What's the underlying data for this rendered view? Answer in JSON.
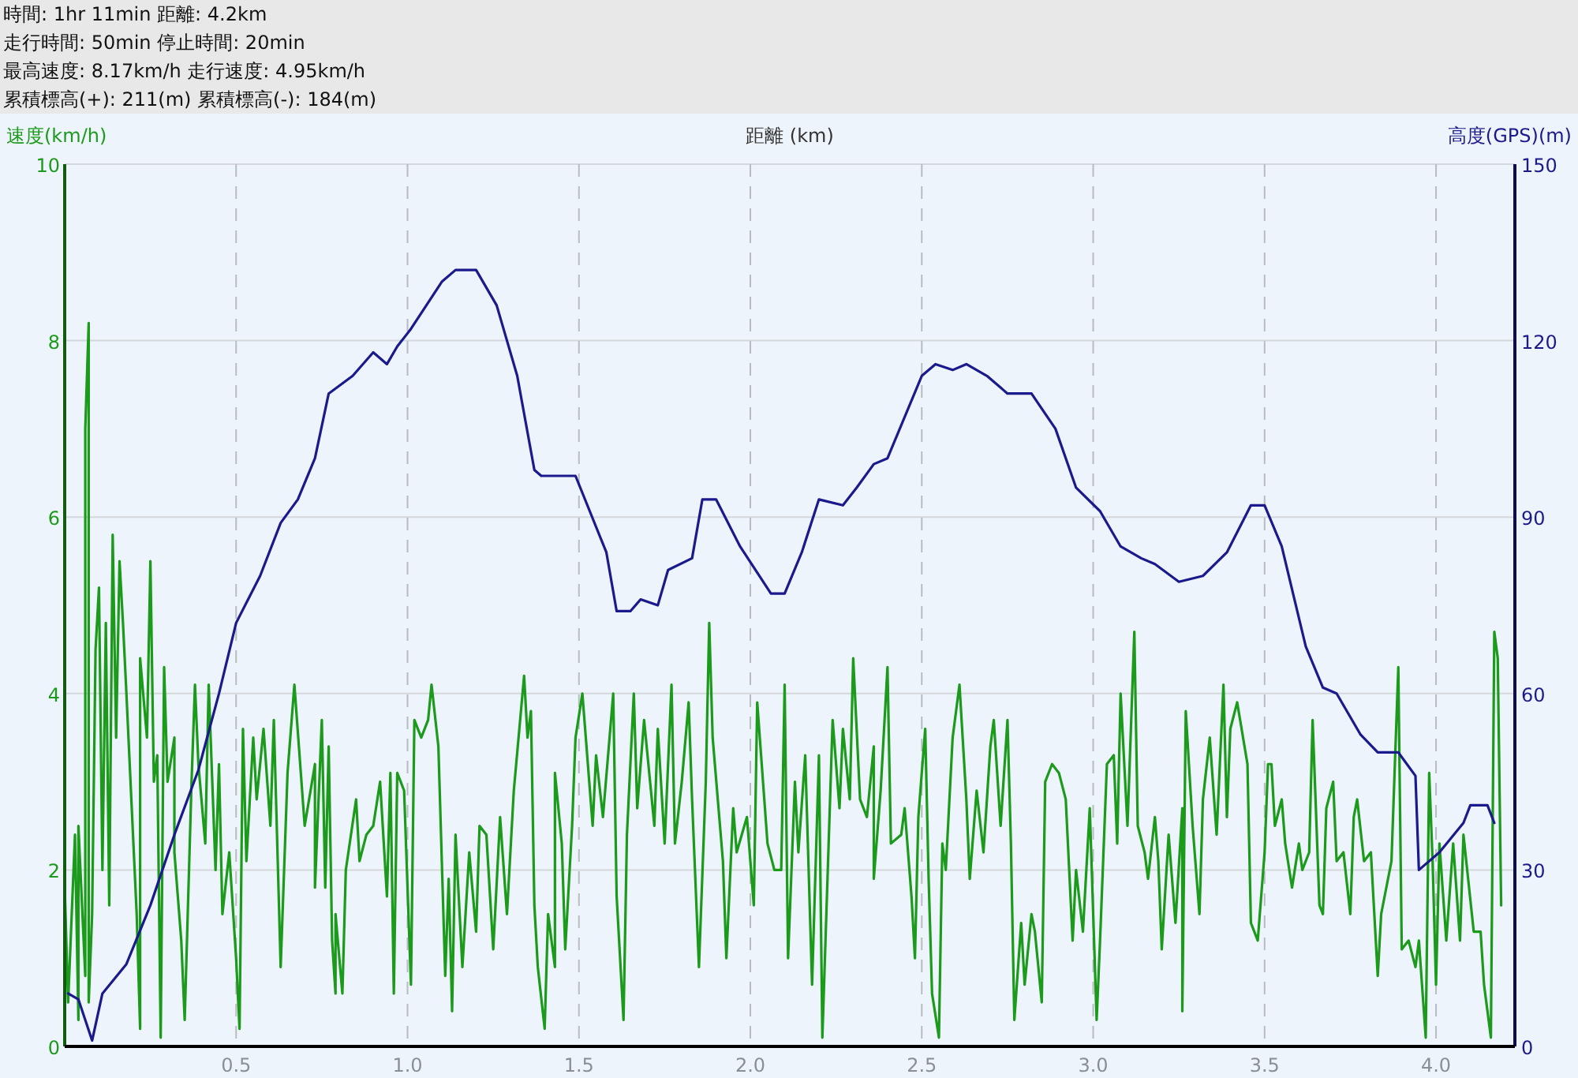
{
  "chart_data": {
    "type": "line",
    "annotations": [
      "時間: 1hr 11min 距離: 4.2km",
      "走行時間: 50min 停止時間: 20min",
      "最高速度: 8.17km/h 走行速度: 4.95km/h",
      "累積標高(+): 211(m) 累積標高(-): 184(m)"
    ],
    "xlabel": "距離 (km)",
    "ylabel": "速度(km/h)",
    "y2label": "高度(GPS)(m)",
    "xlim": [
      0,
      4.23
    ],
    "xticks": [
      {
        "value": 0.5,
        "label": "0.5"
      },
      {
        "value": 1,
        "label": "1.0"
      },
      {
        "value": 1.5,
        "label": "1.5"
      },
      {
        "value": 2,
        "label": "2.0"
      },
      {
        "value": 2.5,
        "label": "2.5"
      },
      {
        "value": 3,
        "label": "3.0"
      },
      {
        "value": 3.5,
        "label": "3.5"
      },
      {
        "value": 4,
        "label": "4.0"
      }
    ],
    "ylim": [
      0,
      10
    ],
    "yticks": [
      0,
      2,
      4,
      6,
      8,
      10
    ],
    "y2lim": [
      0,
      150
    ],
    "y2ticks": [
      0,
      30,
      60,
      90,
      120,
      150
    ],
    "grid": true,
    "series": [
      {
        "color": "#1c9a1c",
        "x": [
          0.0,
          0.01,
          0.03,
          0.04,
          0.04,
          0.06,
          0.06,
          0.07,
          0.07,
          0.08,
          0.09,
          0.1,
          0.11,
          0.12,
          0.13,
          0.14,
          0.15,
          0.16,
          0.17,
          0.18,
          0.21,
          0.22,
          0.22,
          0.24,
          0.25,
          0.26,
          0.27,
          0.28,
          0.29,
          0.3,
          0.32,
          0.32,
          0.34,
          0.35,
          0.37,
          0.38,
          0.39,
          0.41,
          0.42,
          0.44,
          0.45,
          0.46,
          0.48,
          0.5,
          0.51,
          0.52,
          0.53,
          0.55,
          0.56,
          0.58,
          0.6,
          0.61,
          0.63,
          0.65,
          0.67,
          0.7,
          0.73,
          0.73,
          0.75,
          0.76,
          0.77,
          0.78,
          0.79,
          0.79,
          0.81,
          0.82,
          0.85,
          0.86,
          0.88,
          0.9,
          0.92,
          0.94,
          0.95,
          0.96,
          0.97,
          0.99,
          1.01,
          1.02,
          1.04,
          1.06,
          1.07,
          1.09,
          1.11,
          1.12,
          1.13,
          1.14,
          1.16,
          1.18,
          1.2,
          1.21,
          1.23,
          1.25,
          1.27,
          1.29,
          1.31,
          1.34,
          1.35,
          1.36,
          1.37,
          1.38,
          1.4,
          1.41,
          1.43,
          1.43,
          1.45,
          1.46,
          1.48,
          1.49,
          1.51,
          1.54,
          1.55,
          1.57,
          1.6,
          1.61,
          1.63,
          1.64,
          1.66,
          1.67,
          1.69,
          1.72,
          1.73,
          1.75,
          1.77,
          1.78,
          1.8,
          1.82,
          1.83,
          1.85,
          1.87,
          1.88,
          1.89,
          1.92,
          1.93,
          1.95,
          1.96,
          1.99,
          2.01,
          2.02,
          2.05,
          2.07,
          2.09,
          2.1,
          2.11,
          2.13,
          2.14,
          2.16,
          2.18,
          2.2,
          2.21,
          2.22,
          2.24,
          2.26,
          2.27,
          2.29,
          2.3,
          2.32,
          2.34,
          2.36,
          2.36,
          2.38,
          2.4,
          2.41,
          2.44,
          2.45,
          2.47,
          2.48,
          2.49,
          2.51,
          2.52,
          2.53,
          2.55,
          2.56,
          2.57,
          2.59,
          2.61,
          2.63,
          2.64,
          2.66,
          2.68,
          2.7,
          2.71,
          2.73,
          2.75,
          2.76,
          2.77,
          2.79,
          2.8,
          2.82,
          2.83,
          2.85,
          2.86,
          2.88,
          2.9,
          2.92,
          2.94,
          2.95,
          2.97,
          2.99,
          3.01,
          3.02,
          3.04,
          3.06,
          3.07,
          3.08,
          3.1,
          3.12,
          3.13,
          3.15,
          3.16,
          3.18,
          3.19,
          3.2,
          3.22,
          3.24,
          3.26,
          3.26,
          3.27,
          3.29,
          3.31,
          3.32,
          3.34,
          3.36,
          3.38,
          3.39,
          3.4,
          3.42,
          3.45,
          3.46,
          3.48,
          3.5,
          3.51,
          3.52,
          3.53,
          3.55,
          3.56,
          3.58,
          3.6,
          3.61,
          3.63,
          3.64,
          3.66,
          3.67,
          3.68,
          3.7,
          3.71,
          3.73,
          3.75,
          3.76,
          3.77,
          3.79,
          3.81,
          3.83,
          3.84,
          3.87,
          3.89,
          3.9,
          3.92,
          3.94,
          3.95,
          3.97,
          3.98,
          3.99,
          4.0,
          4.01,
          4.03,
          4.05,
          4.07,
          4.08,
          4.11,
          4.13,
          4.14,
          4.16,
          4.17,
          4.18,
          4.19
        ],
        "values": [
          1.8,
          0.5,
          2.4,
          0.3,
          2.5,
          0.8,
          7,
          8.2,
          0.5,
          1.5,
          4.5,
          5.2,
          2,
          4.8,
          1.6,
          5.8,
          3.5,
          5.5,
          4.8,
          4,
          1.5,
          0.2,
          4.4,
          3.5,
          5.5,
          3,
          3.3,
          0.1,
          4.3,
          3,
          3.5,
          2.2,
          1.2,
          0.3,
          3,
          4.1,
          3.2,
          2.3,
          4.1,
          2,
          3.2,
          1.5,
          2.2,
          1,
          0.2,
          3.6,
          2.1,
          3.5,
          2.8,
          3.6,
          2.5,
          3.7,
          0.9,
          3.1,
          4.1,
          2.5,
          3.2,
          1.8,
          3.7,
          1.8,
          3.4,
          1.2,
          0.6,
          1.5,
          0.6,
          2,
          2.8,
          2.1,
          2.4,
          2.5,
          3,
          1.7,
          3.1,
          0.6,
          3.1,
          2.9,
          0.7,
          3.7,
          3.5,
          3.7,
          4.1,
          3.4,
          0.8,
          1.9,
          0.4,
          2.4,
          0.9,
          2.2,
          1.3,
          2.5,
          2.4,
          1.1,
          2.6,
          1.5,
          2.9,
          4.2,
          3.5,
          3.8,
          1.6,
          0.9,
          0.2,
          1.5,
          0.9,
          3.1,
          2.3,
          1.1,
          2.5,
          3.5,
          4,
          2.5,
          3.3,
          2.6,
          4,
          1.7,
          0.3,
          2.4,
          4,
          2.7,
          3.7,
          2.5,
          3.6,
          2.3,
          4.1,
          2.3,
          3,
          3.9,
          2.8,
          0.9,
          3,
          4.8,
          3.5,
          2.1,
          1,
          2.7,
          2.2,
          2.6,
          1.6,
          3.9,
          2.3,
          2,
          2,
          4.1,
          1,
          3,
          2.2,
          3.3,
          0.7,
          3.3,
          0.1,
          1.3,
          3.7,
          2.7,
          3.6,
          2.8,
          4.4,
          2.8,
          2.6,
          3.4,
          1.9,
          2.9,
          4.3,
          2.3,
          2.4,
          2.7,
          1.7,
          1,
          2.6,
          3.6,
          1.9,
          0.6,
          0.1,
          2.3,
          2,
          3.5,
          4.1,
          2.8,
          1.9,
          2.9,
          2.2,
          3.4,
          3.7,
          2.5,
          3.7,
          2.3,
          0.3,
          1.4,
          0.7,
          1.5,
          1.3,
          0.5,
          3,
          3.2,
          3.1,
          2.8,
          1.2,
          2,
          1.3,
          2.7,
          0.3,
          1.2,
          3.2,
          3.3,
          2.3,
          4,
          2.5,
          4.7,
          2.5,
          2.2,
          1.9,
          2.6,
          2.1,
          1.1,
          2.4,
          1.4,
          2.7,
          0.4,
          3.8,
          2.5,
          1.5,
          2.8,
          3.5,
          2.4,
          4.1,
          2.6,
          3.6,
          3.9,
          3.2,
          1.4,
          1.2,
          2.2,
          3.2,
          3.2,
          2.5,
          2.8,
          2.3,
          1.8,
          2.3,
          2,
          2.2,
          3.7,
          1.6,
          1.5,
          2.7,
          3,
          2.1,
          2.2,
          1.5,
          2.6,
          2.8,
          2.1,
          2.2,
          0.8,
          1.5,
          2.1,
          4.3,
          1.1,
          1.2,
          0.9,
          1.2,
          0.1,
          3.1,
          2.1,
          0.7,
          2.3,
          1.2,
          2.3,
          1.2,
          2.4,
          1.3,
          1.3,
          0.7,
          0.1,
          4.7,
          4.4,
          1.6
        ]
      },
      {
        "color": "#1a1a8c",
        "axis": "y2",
        "x": [
          0.01,
          0.04,
          0.08,
          0.11,
          0.18,
          0.25,
          0.32,
          0.39,
          0.45,
          0.5,
          0.57,
          0.63,
          0.68,
          0.73,
          0.77,
          0.84,
          0.9,
          0.94,
          0.97,
          1.01,
          1.1,
          1.14,
          1.2,
          1.26,
          1.32,
          1.37,
          1.39,
          1.49,
          1.58,
          1.61,
          1.65,
          1.68,
          1.73,
          1.76,
          1.83,
          1.86,
          1.9,
          1.97,
          2.06,
          2.1,
          2.15,
          2.2,
          2.27,
          2.31,
          2.36,
          2.4,
          2.5,
          2.54,
          2.59,
          2.63,
          2.69,
          2.75,
          2.82,
          2.89,
          2.95,
          3.02,
          3.08,
          3.14,
          3.18,
          3.25,
          3.32,
          3.39,
          3.46,
          3.5,
          3.55,
          3.62,
          3.67,
          3.71,
          3.78,
          3.83,
          3.89,
          3.94,
          3.95,
          4.01,
          4.08,
          4.1,
          4.15,
          4.17
        ],
        "values": [
          9,
          8,
          1,
          9,
          14,
          24,
          36,
          47,
          60,
          72,
          80,
          89,
          93,
          100,
          111,
          114,
          118,
          116,
          119,
          122,
          130,
          132,
          132,
          126,
          114,
          98,
          97,
          97,
          84,
          74,
          74,
          76,
          75,
          81,
          83,
          93,
          93,
          85,
          77,
          77,
          84,
          93,
          92,
          95,
          99,
          100,
          114,
          116,
          115,
          116,
          114,
          111,
          111,
          105,
          95,
          91,
          85,
          83,
          82,
          79,
          80,
          84,
          92,
          92,
          85,
          68,
          61,
          60,
          53,
          50,
          50,
          46,
          30,
          33,
          38,
          41,
          41,
          38
        ]
      }
    ]
  }
}
